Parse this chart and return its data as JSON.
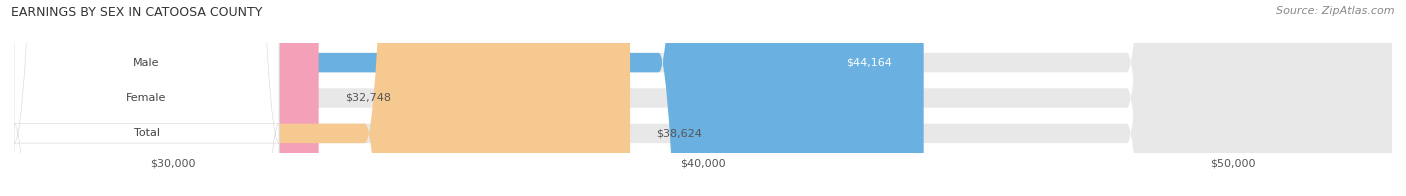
{
  "title": "EARNINGS BY SEX IN CATOOSA COUNTY",
  "source": "Source: ZipAtlas.com",
  "categories": [
    "Male",
    "Female",
    "Total"
  ],
  "values": [
    44164,
    32748,
    38624
  ],
  "bar_colors": [
    "#6ab0e0",
    "#f4a0b8",
    "#f5c990"
  ],
  "bar_bg_color": "#e8e8e8",
  "label_bg_color": "#ffffff",
  "xlim_min": 27000,
  "xlim_max": 53000,
  "xticks": [
    30000,
    40000,
    50000
  ],
  "xtick_labels": [
    "$30,000",
    "$40,000",
    "$50,000"
  ],
  "value_labels": [
    "$44,164",
    "$32,748",
    "$38,624"
  ],
  "figsize": [
    14.06,
    1.96
  ],
  "dpi": 100,
  "bg_color": "#ffffff",
  "title_fontsize": 9,
  "source_fontsize": 8,
  "bar_label_fontsize": 8,
  "tick_fontsize": 8
}
